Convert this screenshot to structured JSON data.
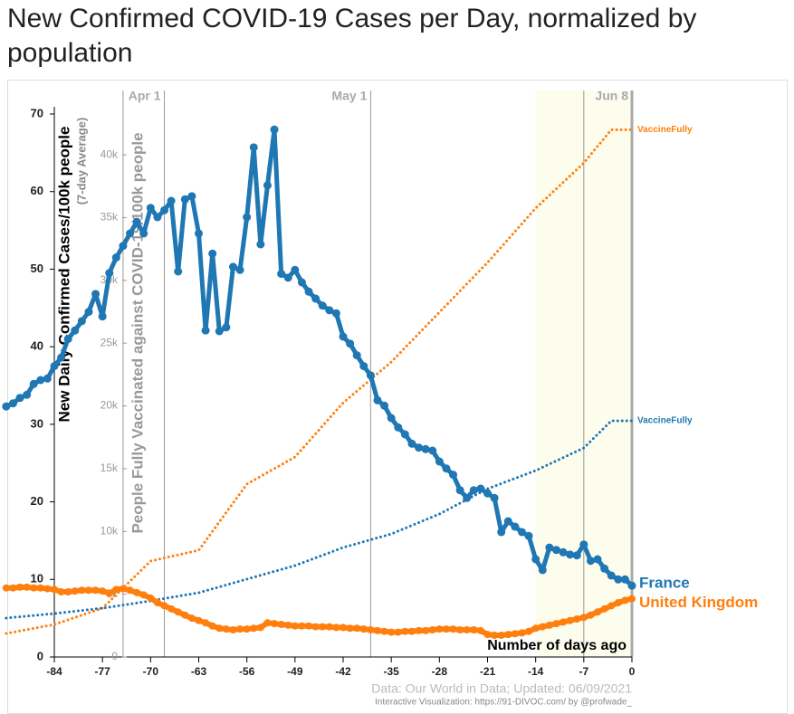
{
  "chart_data": {
    "type": "line",
    "title": "New Confirmed COVID-19 Cases per Day, normalized by population",
    "title_lines": [
      "New Confirmed COVID-19 Cases per Day, normalized by",
      "population"
    ],
    "y_label": "New Daily Confirmed Cases/100k people",
    "y_sublabel": "(7-day Average)",
    "y2_label": "People Fully Vaccinated against COVID-19/100k people",
    "x_label": "Number of days ago",
    "source": "Data: Our World in Data; Updated: 06/09/2021",
    "credit": "Interactive Visualization: https://91-DIVOC.com/ by @profwade_",
    "xlim": [
      -91,
      0
    ],
    "xticks": [
      -84,
      -77,
      -70,
      -63,
      -56,
      -49,
      -42,
      -35,
      -28,
      -21,
      -14,
      -7,
      0
    ],
    "ylim": [
      0,
      70
    ],
    "yticks": [
      0,
      10,
      20,
      30,
      40,
      50,
      60,
      70
    ],
    "y2lim": [
      0,
      43250
    ],
    "y2ticks": [
      0,
      {
        "value": 5000,
        "label": "5k"
      },
      {
        "value": 10000,
        "label": "10k"
      },
      {
        "value": 15000,
        "label": "15k"
      },
      {
        "value": 20000,
        "label": "20k"
      },
      {
        "value": 25000,
        "label": "25k"
      },
      {
        "value": 30000,
        "label": "30k"
      },
      {
        "value": 35000,
        "label": "35k"
      },
      {
        "value": 40000,
        "label": "40k"
      }
    ],
    "markers": [
      {
        "label": "Apr 1",
        "x": -68
      },
      {
        "label": "May 1",
        "x": -38
      },
      {
        "label": "Jun 8",
        "x": 0
      }
    ],
    "reference_lines": [
      -74,
      -7
    ],
    "highlight_range": [
      -14,
      0
    ],
    "x": [
      -91,
      -90,
      -89,
      -88,
      -87,
      -86,
      -85,
      -84,
      -83,
      -82,
      -81,
      -80,
      -79,
      -78,
      -77,
      -76,
      -75,
      -74,
      -73,
      -72,
      -71,
      -70,
      -69,
      -68,
      -67,
      -66,
      -65,
      -64,
      -63,
      -62,
      -61,
      -60,
      -59,
      -58,
      -57,
      -56,
      -55,
      -54,
      -53,
      -52,
      -51,
      -50,
      -49,
      -48,
      -47,
      -46,
      -45,
      -44,
      -43,
      -42,
      -41,
      -40,
      -39,
      -38,
      -37,
      -36,
      -35,
      -34,
      -33,
      -32,
      -31,
      -30,
      -29,
      -28,
      -27,
      -26,
      -25,
      -24,
      -23,
      -22,
      -21,
      -20,
      -19,
      -18,
      -17,
      -16,
      -15,
      -14,
      -13,
      -12,
      -11,
      -10,
      -9,
      -8,
      -7,
      -6,
      -5,
      -4,
      -3,
      -2,
      -1,
      0
    ],
    "series": [
      {
        "name": "France",
        "color": "#1f77b4",
        "values": [
          32.3,
          32.7,
          33.4,
          33.8,
          35.2,
          35.7,
          35.9,
          37.5,
          38.6,
          41,
          42.1,
          43.3,
          44.5,
          46.8,
          43.9,
          49.5,
          51.5,
          53,
          54.6,
          56.1,
          54.6,
          57.9,
          56.7,
          57.6,
          58.8,
          49.7,
          59.0,
          59.4,
          54.6,
          42.1,
          52.0,
          42.0,
          42.5,
          50.3,
          49.9,
          56.7,
          65.7,
          53.2,
          60.8,
          68.0,
          49.4,
          48.9,
          49.9,
          48.3,
          47.1,
          46.2,
          45.3,
          44.7,
          44.3,
          41.3,
          40.4,
          38.9,
          37.5,
          36.3,
          33.1,
          32.4,
          30.8,
          29.6,
          28.7,
          27.5,
          27.0,
          26.8,
          26.6,
          25.2,
          24.3,
          23.5,
          21.5,
          20.5,
          21.5,
          21.7,
          21.1,
          20.5,
          16.1,
          17.5,
          16.8,
          16.1,
          15.6,
          12.6,
          11.2,
          14.1,
          13.8,
          13.5,
          13.2,
          13.1,
          14.5,
          12.4,
          12.6,
          11.4,
          10.5,
          10.0,
          10.0,
          9.2
        ]
      },
      {
        "name": "United Kingdom",
        "color": "#ff7f0e",
        "values": [
          8.9,
          8.9,
          9.0,
          9.0,
          8.9,
          8.9,
          8.8,
          8.7,
          8.4,
          8.4,
          8.5,
          8.6,
          8.6,
          8.6,
          8.5,
          8.2,
          8.7,
          8.8,
          8.6,
          8.3,
          8.0,
          7.6,
          7.0,
          6.6,
          6.2,
          5.8,
          5.4,
          5.0,
          4.7,
          4.4,
          4.0,
          3.7,
          3.6,
          3.5,
          3.6,
          3.6,
          3.7,
          3.8,
          4.4,
          4.3,
          4.2,
          4.1,
          4.0,
          4.0,
          4.0,
          3.9,
          3.9,
          3.9,
          3.8,
          3.8,
          3.7,
          3.7,
          3.6,
          3.5,
          3.4,
          3.3,
          3.2,
          3.2,
          3.3,
          3.3,
          3.4,
          3.4,
          3.5,
          3.6,
          3.6,
          3.6,
          3.5,
          3.5,
          3.5,
          3.4,
          2.9,
          2.8,
          2.8,
          2.9,
          3.0,
          3.1,
          3.3,
          3.7,
          3.9,
          4.1,
          4.3,
          4.5,
          4.7,
          4.9,
          5.1,
          5.4,
          5.8,
          6.2,
          6.6,
          7.0,
          7.3,
          7.5
        ]
      }
    ],
    "vaccination_series": [
      {
        "label": "VaccineFully",
        "color": "#ff7f0e",
        "axis": "y2",
        "x": [
          -91,
          -84,
          -77,
          -70,
          -63,
          -56,
          -49,
          -42,
          -35,
          -28,
          -21,
          -14,
          -7,
          -3,
          0
        ],
        "values": [
          1870,
          2590,
          3890,
          7640,
          8500,
          13770,
          15930,
          20250,
          23500,
          27460,
          31420,
          35750,
          39350,
          42000,
          42000
        ]
      },
      {
        "label": "VaccineFully",
        "color": "#1f77b4",
        "axis": "y2",
        "x": [
          -91,
          -84,
          -77,
          -70,
          -63,
          -56,
          -49,
          -42,
          -35,
          -28,
          -21,
          -14,
          -7,
          -3,
          0
        ],
        "values": [
          3100,
          3460,
          3890,
          4470,
          5120,
          6200,
          7280,
          8720,
          9800,
          11390,
          13400,
          14850,
          16650,
          18810,
          18810
        ]
      }
    ]
  }
}
